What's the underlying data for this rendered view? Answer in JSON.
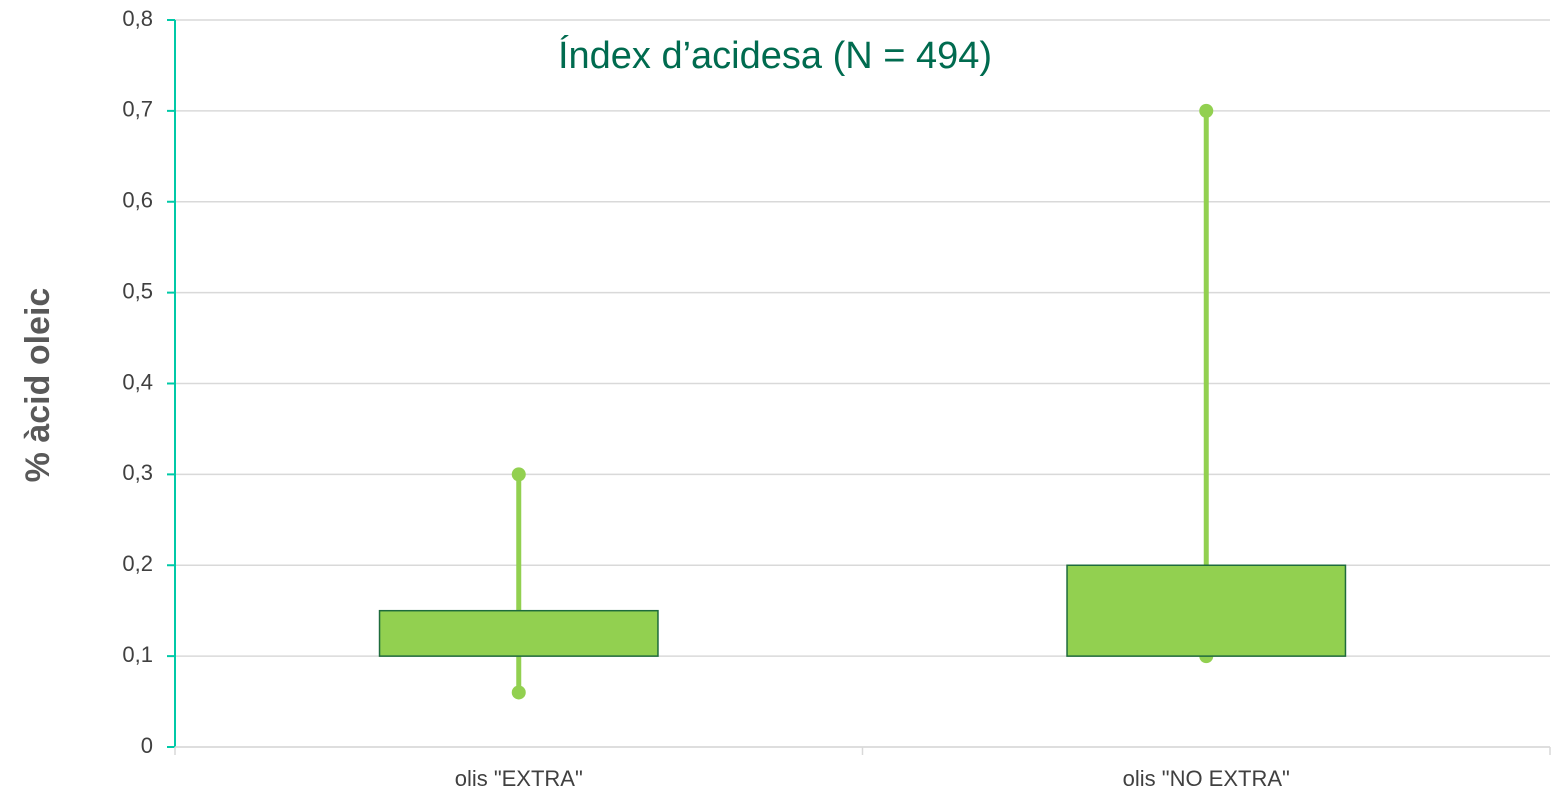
{
  "chart_data": {
    "type": "box",
    "title": "Índex d’acidesa (N = 494)",
    "y_label": "% àcid oleic",
    "categories": [
      "olis \"EXTRA\"",
      "olis \"NO EXTRA\""
    ],
    "whisker_low": [
      0.06,
      0.1
    ],
    "whisker_high": [
      0.3,
      0.7
    ],
    "box_low": [
      0.1,
      0.1
    ],
    "box_high": [
      0.15,
      0.2
    ],
    "color": "#92d050",
    "box_edge_color": "#1e6b3c",
    "ylim": [
      0,
      0.8
    ],
    "yticks": [
      0,
      {
        "value": 0.1,
        "label": "0,1"
      },
      {
        "value": 0.2,
        "label": "0,2"
      },
      {
        "value": 0.3,
        "label": "0,3"
      },
      {
        "value": 0.4,
        "label": "0,4"
      },
      {
        "value": 0.5,
        "label": "0,5"
      },
      {
        "value": 0.6,
        "label": "0,6"
      },
      {
        "value": 0.7,
        "label": "0,7"
      },
      {
        "value": 0.8,
        "label": "0,8"
      }
    ],
    "grid": true
  }
}
